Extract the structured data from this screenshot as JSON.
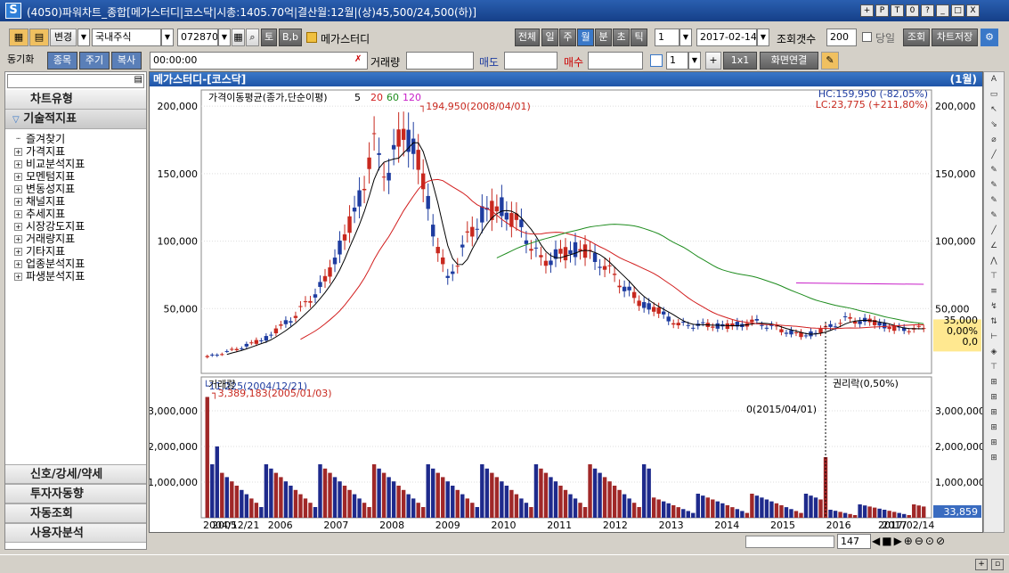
{
  "window": {
    "title": "(4050)파워차트_종합[메가스터디|코스닥|시총:1405.70억|결산월:12월|(상)45,500/24,500(하)]",
    "logo": "S",
    "buttons": [
      "+",
      "P",
      "T",
      "0",
      "?",
      "_",
      "□",
      "X"
    ]
  },
  "toolbar": {
    "change_label": "변경",
    "market": "국내주식",
    "code": "072870",
    "btn_to": "토",
    "btn_bb": "B,b",
    "stock_name": "메가스터디",
    "period_tabs": [
      "전체",
      "일",
      "주",
      "월",
      "분",
      "초",
      "틱"
    ],
    "period_active": 3,
    "period_count": "1",
    "date": "2017-02-14",
    "lookup_count_label": "조회갯수",
    "lookup_count": "200",
    "same_day_label": "당일",
    "query_label": "조회",
    "save_label": "차트저장"
  },
  "toolbar2": {
    "tabs": [
      "동기화",
      "종목",
      "주기",
      "복사"
    ],
    "time": "00:00:00",
    "trade_label": "거래량",
    "sell_label": "매도",
    "buy_label": "매수",
    "count": "1",
    "layout": "1x1",
    "connect_label": "화면연결"
  },
  "sidebar": {
    "top": "차트유형",
    "active": "기술적지표",
    "items": [
      "즐겨찾기",
      "가격지표",
      "비교분석지표",
      "모멘텀지표",
      "변동성지표",
      "채널지표",
      "추세지표",
      "시장강도지표",
      "거래량지표",
      "기타지표",
      "업종분석지표",
      "파생분석지표"
    ],
    "bottom": [
      "신호/강세/약세",
      "투자자동향",
      "자동조회",
      "사용자분석"
    ]
  },
  "chart": {
    "title": "메가스터디-[코스닥]",
    "period": "(1월)",
    "ma_label": "가격이동평균(종가,단순이평)",
    "ma_periods": [
      "5",
      "20",
      "60",
      "120"
    ],
    "hc": "HC:159,950 (-82,05%)",
    "lc": "LC:23,775 (+211,80%)",
    "max_label": "194,950(2008/04/01)",
    "min_label": "11,225(2004/12/21)",
    "rights_label": "권리락(0,50%)",
    "cur_price": "35,000",
    "cur_chg": "0,00%",
    "cur_diff": "0,0",
    "y_ticks": [
      "200,000",
      "150,000",
      "100,000",
      "50,000"
    ],
    "volume_label": "거래량",
    "vol_max_label": "3,389,183(2005/01/03)",
    "vol_zero_label": "0(2015/04/01)",
    "vol_ticks": [
      "3,000,000",
      "2,000,000",
      "1,000,000"
    ],
    "vol_cur": "33,859",
    "x_labels": [
      "2004/12/21",
      "2005",
      "2006",
      "2007",
      "2008",
      "2009",
      "2010",
      "2011",
      "2012",
      "2013",
      "2014",
      "2015",
      "2016",
      "2017",
      "2017/02/14"
    ],
    "scroll_value": "147",
    "colors": {
      "up": "#c8281e",
      "down": "#1e3ca0",
      "ma5": "#000000",
      "ma20": "#d21e1e",
      "ma60": "#1e8c1e",
      "ma120": "#c81ec8"
    }
  },
  "chart_data": {
    "type": "candlestick",
    "anchors_x": [
      0,
      1,
      2,
      3,
      4,
      5,
      6,
      7,
      8,
      9,
      10,
      11,
      12,
      13,
      14,
      15,
      16,
      17,
      18,
      19,
      20,
      21,
      22,
      23,
      24,
      25,
      26,
      27,
      28,
      29,
      30,
      31,
      32,
      33,
      34,
      35,
      36,
      37,
      38,
      39,
      40,
      41,
      42,
      43,
      44,
      45,
      46,
      47,
      48,
      49,
      50,
      51,
      52,
      53,
      54,
      55,
      56,
      57,
      58,
      59,
      60,
      61,
      62,
      63,
      64,
      65,
      66,
      67,
      68,
      69,
      70,
      71,
      72,
      73,
      74,
      75,
      76,
      77,
      78,
      79,
      80,
      81,
      82,
      83,
      84,
      85,
      86,
      87,
      88,
      89,
      90,
      91,
      92,
      93,
      94,
      95,
      96,
      97,
      98,
      99,
      100,
      101,
      102,
      103,
      104,
      105,
      106,
      107,
      108,
      109,
      110,
      111,
      112,
      113,
      114,
      115,
      116,
      117,
      118,
      119,
      120,
      121,
      122,
      123,
      124,
      125,
      126,
      127,
      128,
      129,
      130,
      131,
      132,
      133,
      134,
      135,
      136,
      137,
      138,
      139,
      140,
      141,
      142,
      143,
      144,
      145,
      146
    ]
  }
}
